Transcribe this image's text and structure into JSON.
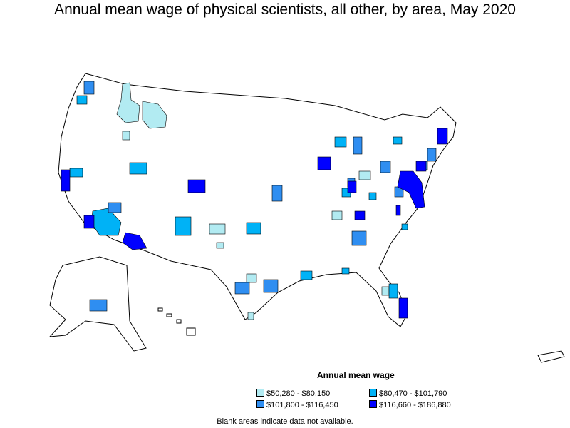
{
  "title": "Annual mean wage of physical scientists, all other, by area, May 2020",
  "legend": {
    "title": "Annual mean wage",
    "items": [
      {
        "label": "$50,280 - $80,150",
        "color": "#b2ebf2"
      },
      {
        "label": "$80,470 - $101,790",
        "color": "#00b2f6"
      },
      {
        "label": "$101,800 - $116,450",
        "color": "#2f8ef1"
      },
      {
        "label": "$116,660 - $186,880",
        "color": "#0000ff"
      }
    ]
  },
  "footnote": "Blank areas indicate data not available."
}
